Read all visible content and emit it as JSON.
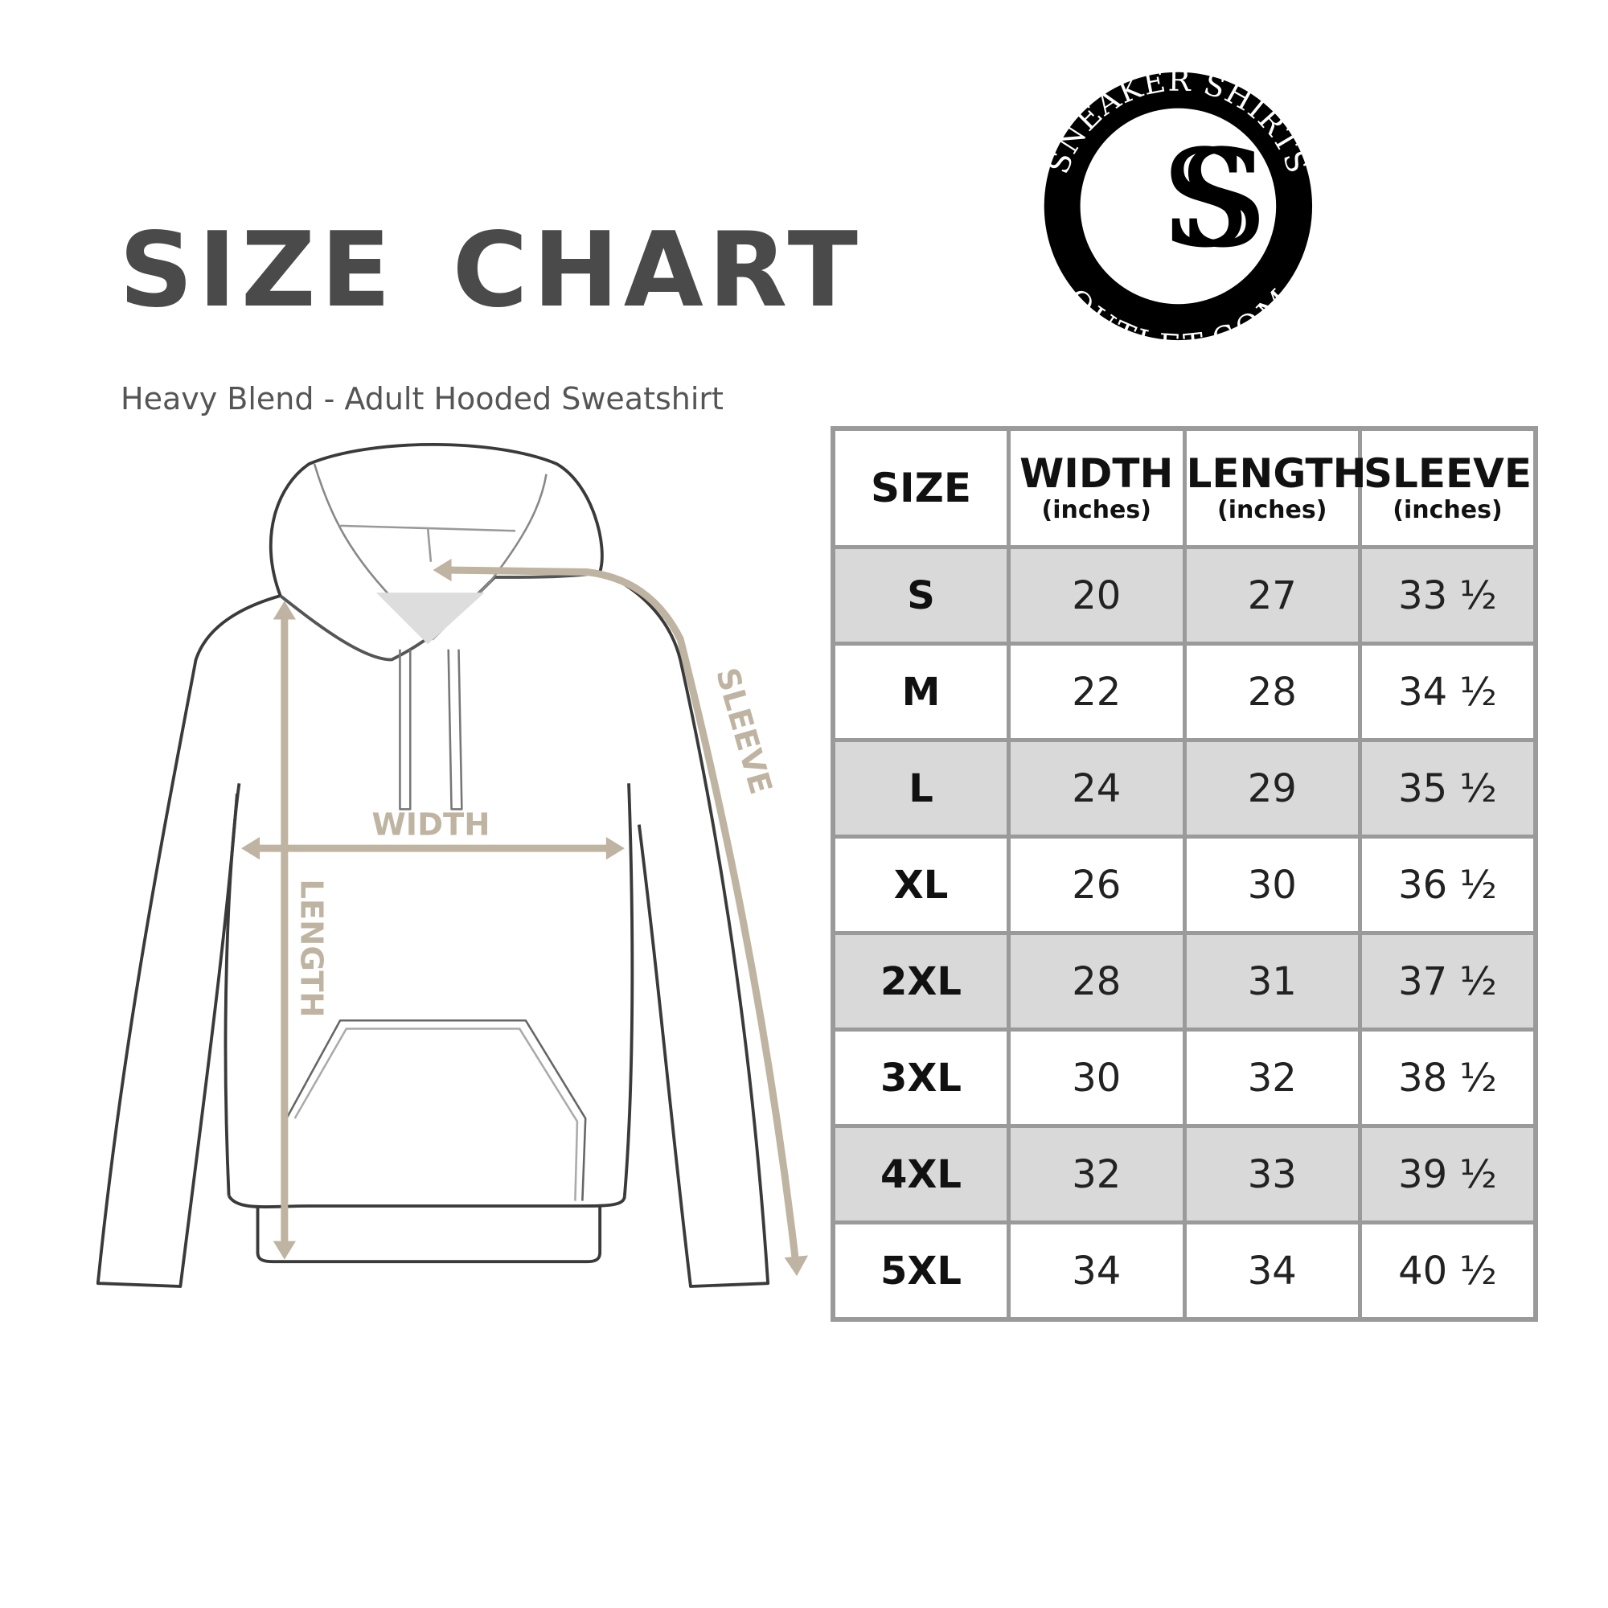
{
  "title": "SIZE CHART",
  "subtitle": "Heavy Blend - Adult Hooded Sweatshirt",
  "logo": {
    "top_text": "SNEAKER SHIRTS",
    "bottom_text": "OUTLET.COM",
    "monogram": "SS"
  },
  "diagram": {
    "width_label": "WIDTH",
    "length_label": "LENGTH",
    "sleeve_label": "SLEEVE",
    "arrow_color": "#bfb3a1"
  },
  "table": {
    "headers": [
      {
        "label": "SIZE",
        "unit": ""
      },
      {
        "label": "WIDTH",
        "unit": "(inches)"
      },
      {
        "label": "LENGTH",
        "unit": "(inches)"
      },
      {
        "label": "SLEEVE",
        "unit": "(inches)"
      }
    ],
    "rows": [
      [
        "S",
        "20",
        "27",
        "33 ½"
      ],
      [
        "M",
        "22",
        "28",
        "34 ½"
      ],
      [
        "L",
        "24",
        "29",
        "35 ½"
      ],
      [
        "XL",
        "26",
        "30",
        "36 ½"
      ],
      [
        "2XL",
        "28",
        "31",
        "37 ½"
      ],
      [
        "3XL",
        "30",
        "32",
        "38 ½"
      ],
      [
        "4XL",
        "32",
        "33",
        "39 ½"
      ],
      [
        "5XL",
        "34",
        "34",
        "40 ½"
      ]
    ]
  }
}
